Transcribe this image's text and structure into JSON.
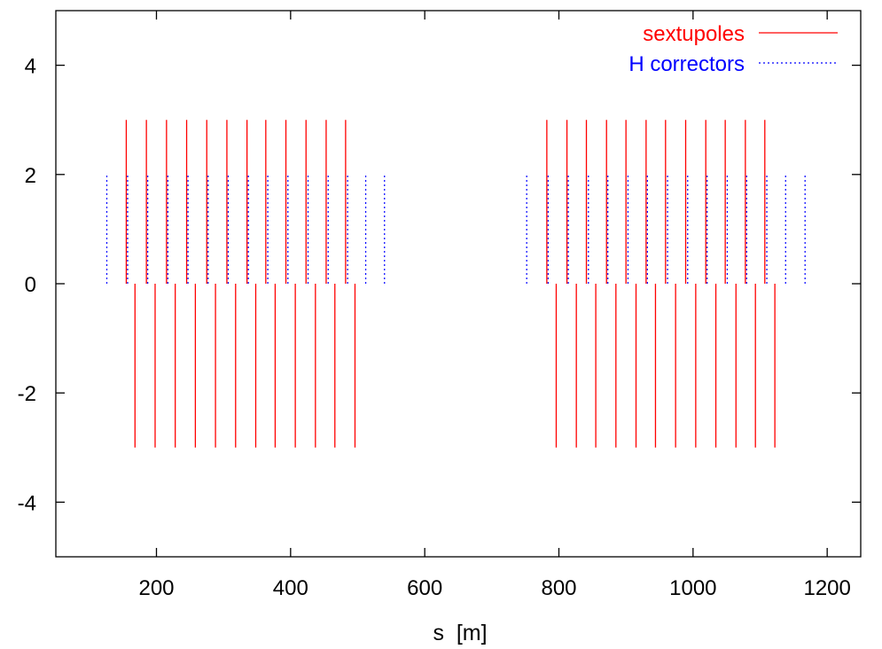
{
  "colors": {
    "sextupoles": "#ff0000",
    "h_correctors": "#0000ff",
    "frame": "#000000"
  },
  "chart_data": {
    "type": "line",
    "xlabel": "s  [m]",
    "ylabel": "",
    "xlim": [
      50,
      1250
    ],
    "ylim": [
      -5,
      5
    ],
    "xticks": [
      200,
      400,
      600,
      800,
      1000,
      1200
    ],
    "yticks": [
      -4,
      -2,
      0,
      2,
      4
    ],
    "xtick_labels": [
      "200",
      "400",
      "600",
      "800",
      "1000",
      "1200"
    ],
    "ytick_labels": [
      "-4",
      "-2",
      "0",
      "2",
      "4"
    ],
    "grid": false,
    "legend_position": "top-right",
    "series": [
      {
        "name": "sextupoles",
        "style": "solid",
        "markers": [
          {
            "s": 155,
            "y0": 0,
            "y1": 3
          },
          {
            "s": 185,
            "y0": 0,
            "y1": 3
          },
          {
            "s": 215,
            "y0": 0,
            "y1": 3
          },
          {
            "s": 245,
            "y0": 0,
            "y1": 3
          },
          {
            "s": 275,
            "y0": 0,
            "y1": 3
          },
          {
            "s": 305,
            "y0": 0,
            "y1": 3
          },
          {
            "s": 335,
            "y0": 0,
            "y1": 3
          },
          {
            "s": 363,
            "y0": 0,
            "y1": 3
          },
          {
            "s": 393,
            "y0": 0,
            "y1": 3
          },
          {
            "s": 423,
            "y0": 0,
            "y1": 3
          },
          {
            "s": 453,
            "y0": 0,
            "y1": 3
          },
          {
            "s": 482,
            "y0": 0,
            "y1": 3
          },
          {
            "s": 168,
            "y0": -3,
            "y1": 0
          },
          {
            "s": 198,
            "y0": -3,
            "y1": 0
          },
          {
            "s": 228,
            "y0": -3,
            "y1": 0
          },
          {
            "s": 258,
            "y0": -3,
            "y1": 0
          },
          {
            "s": 288,
            "y0": -3,
            "y1": 0
          },
          {
            "s": 318,
            "y0": -3,
            "y1": 0
          },
          {
            "s": 348,
            "y0": -3,
            "y1": 0
          },
          {
            "s": 377,
            "y0": -3,
            "y1": 0
          },
          {
            "s": 407,
            "y0": -3,
            "y1": 0
          },
          {
            "s": 437,
            "y0": -3,
            "y1": 0
          },
          {
            "s": 466,
            "y0": -3,
            "y1": 0
          },
          {
            "s": 496,
            "y0": -3,
            "y1": 0
          },
          {
            "s": 782,
            "y0": 0,
            "y1": 3
          },
          {
            "s": 812,
            "y0": 0,
            "y1": 3
          },
          {
            "s": 841,
            "y0": 0,
            "y1": 3
          },
          {
            "s": 871,
            "y0": 0,
            "y1": 3
          },
          {
            "s": 900,
            "y0": 0,
            "y1": 3
          },
          {
            "s": 930,
            "y0": 0,
            "y1": 3
          },
          {
            "s": 959,
            "y0": 0,
            "y1": 3
          },
          {
            "s": 989,
            "y0": 0,
            "y1": 3
          },
          {
            "s": 1019,
            "y0": 0,
            "y1": 3
          },
          {
            "s": 1048,
            "y0": 0,
            "y1": 3
          },
          {
            "s": 1078,
            "y0": 0,
            "y1": 3
          },
          {
            "s": 1107,
            "y0": 0,
            "y1": 3
          },
          {
            "s": 796,
            "y0": -3,
            "y1": 0
          },
          {
            "s": 826,
            "y0": -3,
            "y1": 0
          },
          {
            "s": 855,
            "y0": -3,
            "y1": 0
          },
          {
            "s": 885,
            "y0": -3,
            "y1": 0
          },
          {
            "s": 915,
            "y0": -3,
            "y1": 0
          },
          {
            "s": 944,
            "y0": -3,
            "y1": 0
          },
          {
            "s": 974,
            "y0": -3,
            "y1": 0
          },
          {
            "s": 1004,
            "y0": -3,
            "y1": 0
          },
          {
            "s": 1034,
            "y0": -3,
            "y1": 0
          },
          {
            "s": 1064,
            "y0": -3,
            "y1": 0
          },
          {
            "s": 1093,
            "y0": -3,
            "y1": 0
          },
          {
            "s": 1122,
            "y0": -3,
            "y1": 0
          }
        ]
      },
      {
        "name": "H correctors",
        "style": "dotted",
        "markers": [
          {
            "s": 126,
            "y0": 0,
            "y1": 2
          },
          {
            "s": 157,
            "y0": 0,
            "y1": 2
          },
          {
            "s": 187,
            "y0": 0,
            "y1": 2
          },
          {
            "s": 217,
            "y0": 0,
            "y1": 2
          },
          {
            "s": 247,
            "y0": 0,
            "y1": 2
          },
          {
            "s": 277,
            "y0": 0,
            "y1": 2
          },
          {
            "s": 307,
            "y0": 0,
            "y1": 2
          },
          {
            "s": 337,
            "y0": 0,
            "y1": 2
          },
          {
            "s": 366,
            "y0": 0,
            "y1": 2
          },
          {
            "s": 396,
            "y0": 0,
            "y1": 2
          },
          {
            "s": 426,
            "y0": 0,
            "y1": 2
          },
          {
            "s": 456,
            "y0": 0,
            "y1": 2
          },
          {
            "s": 485,
            "y0": 0,
            "y1": 2
          },
          {
            "s": 512,
            "y0": 0,
            "y1": 2
          },
          {
            "s": 540,
            "y0": 0,
            "y1": 2
          },
          {
            "s": 752,
            "y0": 0,
            "y1": 2
          },
          {
            "s": 784,
            "y0": 0,
            "y1": 2
          },
          {
            "s": 814,
            "y0": 0,
            "y1": 2
          },
          {
            "s": 844,
            "y0": 0,
            "y1": 2
          },
          {
            "s": 873,
            "y0": 0,
            "y1": 2
          },
          {
            "s": 903,
            "y0": 0,
            "y1": 2
          },
          {
            "s": 932,
            "y0": 0,
            "y1": 2
          },
          {
            "s": 962,
            "y0": 0,
            "y1": 2
          },
          {
            "s": 992,
            "y0": 0,
            "y1": 2
          },
          {
            "s": 1021,
            "y0": 0,
            "y1": 2
          },
          {
            "s": 1051,
            "y0": 0,
            "y1": 2
          },
          {
            "s": 1080,
            "y0": 0,
            "y1": 2
          },
          {
            "s": 1110,
            "y0": 0,
            "y1": 2
          },
          {
            "s": 1138,
            "y0": 0,
            "y1": 2
          },
          {
            "s": 1167,
            "y0": 0,
            "y1": 2
          }
        ]
      }
    ]
  }
}
